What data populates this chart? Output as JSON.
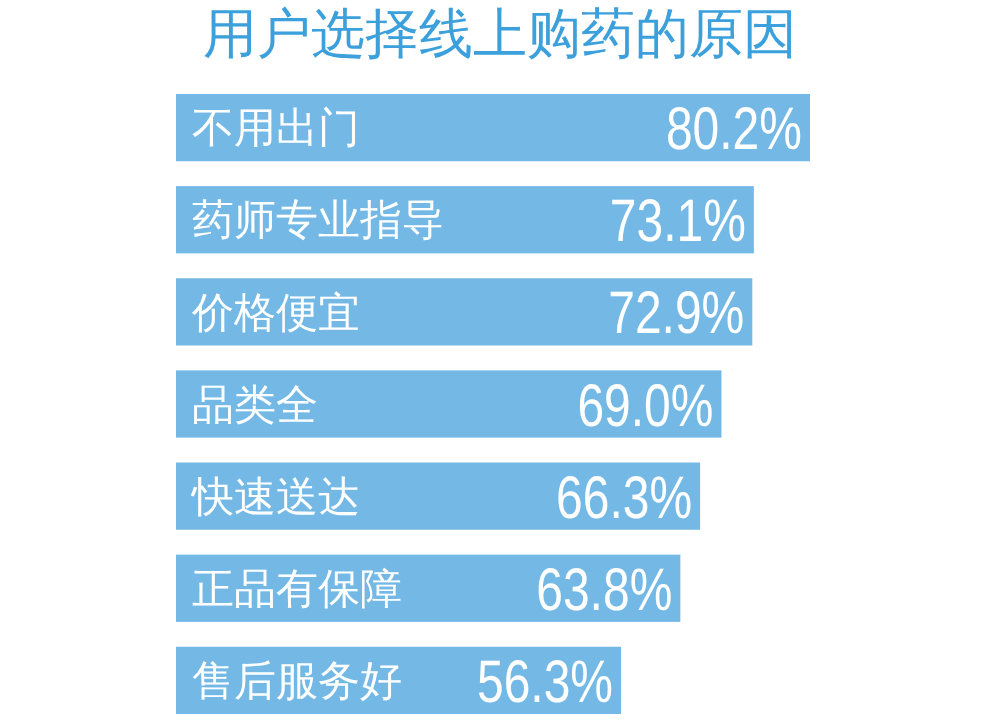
{
  "chart_data": {
    "type": "bar",
    "orientation": "horizontal",
    "title": "用户选择线上购药的原因",
    "categories": [
      "不用出门",
      "药师专业指导",
      "价格便宜",
      "品类全",
      "快速送达",
      "正品有保障",
      "售后服务好"
    ],
    "values": [
      80.2,
      73.1,
      72.9,
      69.0,
      66.3,
      63.8,
      56.3
    ],
    "value_labels": [
      "80.2%",
      "73.1%",
      "72.9%",
      "69.0%",
      "66.3%",
      "63.8%",
      "56.3%"
    ],
    "color": "#74b9e6"
  }
}
